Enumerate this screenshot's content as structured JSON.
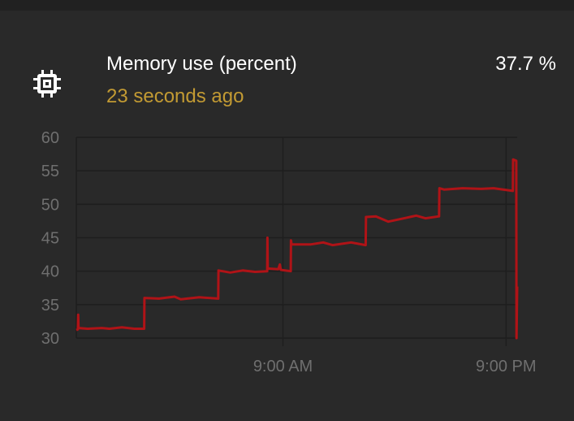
{
  "entity": {
    "name": "Memory use (percent)",
    "last_changed": "23 seconds ago",
    "state": "37.7 %",
    "icon": "chip-icon"
  },
  "colors": {
    "line": "#b01317",
    "secondary_text": "#c29a33",
    "axis_text": "#6f6f6f"
  },
  "chart_data": {
    "type": "line",
    "ylim": [
      30,
      60
    ],
    "yticks": [
      "30",
      "35",
      "40",
      "45",
      "50",
      "55",
      "60"
    ],
    "xticks": [
      {
        "time": "09:00",
        "label": "9:00 AM"
      },
      {
        "time": "21:00",
        "label": "9:00 PM"
      }
    ],
    "xrange": [
      "21:53",
      "21:36"
    ],
    "grid": true,
    "series": [
      {
        "points": [
          [
            "21:53",
            31.2
          ],
          [
            "21:58",
            31.3
          ],
          [
            "21:59",
            33.5
          ],
          [
            "22:00",
            31.5
          ],
          [
            "22:30",
            31.4
          ],
          [
            "23:15",
            31.5
          ],
          [
            "23:40",
            31.4
          ],
          [
            "00:20",
            31.6
          ],
          [
            "01:00",
            31.4
          ],
          [
            "01:32",
            31.4
          ],
          [
            "01:33",
            36.0
          ],
          [
            "02:20",
            35.9
          ],
          [
            "03:10",
            36.2
          ],
          [
            "03:30",
            35.8
          ],
          [
            "04:30",
            36.1
          ],
          [
            "05:31",
            35.9
          ],
          [
            "05:32",
            40.1
          ],
          [
            "06:10",
            39.8
          ],
          [
            "06:50",
            40.1
          ],
          [
            "07:30",
            39.9
          ],
          [
            "08:09",
            40.0
          ],
          [
            "08:10",
            45.0
          ],
          [
            "08:11",
            40.4
          ],
          [
            "08:45",
            40.3
          ],
          [
            "08:50",
            41.0
          ],
          [
            "08:53",
            40.2
          ],
          [
            "09:25",
            40.0
          ],
          [
            "09:26",
            44.6
          ],
          [
            "09:28",
            44.0
          ],
          [
            "10:30",
            44.0
          ],
          [
            "11:10",
            44.3
          ],
          [
            "11:40",
            43.9
          ],
          [
            "12:40",
            44.3
          ],
          [
            "13:27",
            43.9
          ],
          [
            "13:28",
            48.1
          ],
          [
            "14:00",
            48.2
          ],
          [
            "14:40",
            47.4
          ],
          [
            "15:40",
            48.0
          ],
          [
            "16:10",
            48.3
          ],
          [
            "16:40",
            47.9
          ],
          [
            "17:24",
            48.2
          ],
          [
            "17:25",
            52.4
          ],
          [
            "17:40",
            52.2
          ],
          [
            "18:40",
            52.4
          ],
          [
            "19:40",
            52.3
          ],
          [
            "20:20",
            52.4
          ],
          [
            "21:22",
            52.0
          ],
          [
            "21:23",
            56.7
          ],
          [
            "21:33",
            56.5
          ],
          [
            "21:34",
            30.0
          ],
          [
            "21:36",
            37.7
          ]
        ]
      }
    ]
  }
}
